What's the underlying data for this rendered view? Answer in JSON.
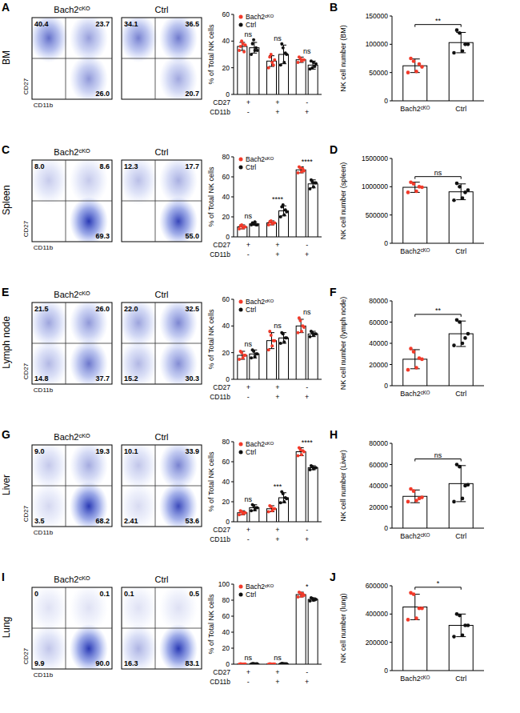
{
  "chart_data": [
    {
      "type": "flow",
      "panel": "A",
      "side_label": "BM",
      "x_label": "CD11b",
      "y_label": "CD27",
      "plots": [
        {
          "title": "Bach2ᶜᴷᴼ",
          "quadrants": {
            "ul": "40.4",
            "ur": "23.7",
            "lr": "26.0"
          }
        },
        {
          "title": "Ctrl",
          "quadrants": {
            "ul": "34.1",
            "ur": "36.5",
            "lr": "20.7"
          }
        }
      ]
    },
    {
      "type": "grouped_bar",
      "y_label": "% of Total NK cells",
      "category_rows": [
        "CD27",
        "CD11b"
      ],
      "categories": [
        [
          "+",
          "-"
        ],
        [
          "+",
          "+"
        ],
        [
          "-",
          "+"
        ]
      ],
      "ylim": [
        0,
        60
      ],
      "yticks": [
        0,
        20,
        40,
        60
      ],
      "legend": "top-left",
      "series": [
        {
          "name": "Bach2ᶜᴷᴼ",
          "color": "#f23a2a",
          "values": [
            36,
            25,
            26
          ],
          "errors": [
            3,
            4,
            2
          ],
          "points": [
            [
              33,
              36,
              40,
              38,
              32,
              37
            ],
            [
              20,
              28,
              30,
              24,
              22,
              26
            ],
            [
              24,
              28,
              27,
              25,
              26,
              26
            ]
          ]
        },
        {
          "name": "Ctrl",
          "color": "#111111",
          "values": [
            35,
            30,
            22
          ],
          "errors": [
            4,
            7,
            3
          ],
          "points": [
            [
              30,
              38,
              41,
              33,
              35,
              33
            ],
            [
              22,
              38,
              35,
              24,
              31,
              30
            ],
            [
              19,
              25,
              20,
              24,
              21,
              23
            ]
          ]
        }
      ],
      "significance": [
        "ns",
        "ns",
        "ns"
      ]
    },
    {
      "type": "bar",
      "panel": "B",
      "y_label": "NK cell number (BM)",
      "categories": [
        "Bach2ᶜᴷᴼ",
        "Ctrl"
      ],
      "values": [
        62000,
        103000
      ],
      "errors": [
        12000,
        18000
      ],
      "colors": [
        "#f23a2a",
        "#111111"
      ],
      "points": [
        [
          50000,
          75000,
          70000,
          52000,
          65000,
          60000
        ],
        [
          85000,
          125000,
          120000,
          88000,
          100000,
          100000
        ]
      ],
      "ylim": [
        0,
        150000
      ],
      "yticks": [
        0,
        50000,
        100000,
        150000
      ],
      "significance": [
        "**"
      ]
    },
    {
      "type": "flow",
      "panel": "C",
      "side_label": "Spleen",
      "x_label": "CD11b",
      "y_label": "CD27",
      "plots": [
        {
          "title": "Bach2ᶜᴷᴼ",
          "quadrants": {
            "ul": "8.0",
            "ur": "8.6",
            "lr": "69.3"
          }
        },
        {
          "title": "Ctrl",
          "quadrants": {
            "ul": "12.3",
            "ur": "17.7",
            "lr": "55.0"
          }
        }
      ]
    },
    {
      "type": "grouped_bar",
      "y_label": "% of Total NK cells",
      "category_rows": [
        "CD27",
        "CD11b"
      ],
      "categories": [
        [
          "+",
          "-"
        ],
        [
          "+",
          "+"
        ],
        [
          "-",
          "+"
        ]
      ],
      "ylim": [
        0,
        80
      ],
      "yticks": [
        0,
        20,
        40,
        60,
        80
      ],
      "legend": "top-left",
      "series": [
        {
          "name": "Bach2ᶜᴷᴼ",
          "color": "#f23a2a",
          "values": [
            10,
            14,
            67
          ],
          "errors": [
            2,
            2,
            3
          ],
          "points": [
            [
              8,
              11,
              12,
              9,
              10,
              10
            ],
            [
              12,
              15,
              16,
              13,
              14,
              14
            ],
            [
              64,
              70,
              69,
              65,
              68,
              66
            ]
          ]
        },
        {
          "name": "Ctrl",
          "color": "#111111",
          "values": [
            13,
            26,
            53
          ],
          "errors": [
            1.5,
            5,
            4
          ],
          "points": [
            [
              12,
              14,
              13,
              15,
              12,
              12
            ],
            [
              20,
              30,
              32,
              22,
              27,
              25
            ],
            [
              48,
              57,
              55,
              50,
              54,
              54
            ]
          ]
        }
      ],
      "significance": [
        "ns",
        "****",
        "****"
      ]
    },
    {
      "type": "bar",
      "panel": "D",
      "y_label": "NK cell number (spleen)",
      "categories": [
        "Bach2ᶜᴷᴼ",
        "Ctrl"
      ],
      "values": [
        990000,
        910000
      ],
      "errors": [
        90000,
        140000
      ],
      "colors": [
        "#f23a2a",
        "#111111"
      ],
      "points": [
        [
          900000,
          1080000,
          1050000,
          920000,
          1000000,
          990000
        ],
        [
          760000,
          1060000,
          1000000,
          800000,
          900000,
          940000
        ]
      ],
      "ylim": [
        0,
        1500000
      ],
      "yticks": [
        0,
        500000,
        1000000,
        1500000
      ],
      "significance": [
        "ns"
      ]
    },
    {
      "type": "flow",
      "panel": "E",
      "side_label": "Lymph node",
      "x_label": "CD11b",
      "y_label": "CD27",
      "plots": [
        {
          "title": "Bach2ᶜᴷᴼ",
          "quadrants": {
            "ul": "21.5",
            "ur": "26.0",
            "ll": "14.8",
            "lr": "37.7"
          }
        },
        {
          "title": "Ctrl",
          "quadrants": {
            "ul": "22.0",
            "ur": "32.5",
            "ll": "15.2",
            "lr": "30.3"
          }
        }
      ]
    },
    {
      "type": "grouped_bar",
      "y_label": "% of Total NK cells",
      "category_rows": [
        "CD27",
        "CD11b"
      ],
      "categories": [
        [
          "+",
          "-"
        ],
        [
          "+",
          "+"
        ],
        [
          "-",
          "+"
        ]
      ],
      "ylim": [
        0,
        60
      ],
      "yticks": [
        0,
        20,
        40,
        60
      ],
      "legend": "top-left",
      "series": [
        {
          "name": "Bach2ᶜᴷᴼ",
          "color": "#f23a2a",
          "values": [
            18,
            29,
            40
          ],
          "errors": [
            3,
            6,
            5
          ],
          "points": [
            [
              15,
              21,
              20,
              16,
              18,
              18
            ],
            [
              22,
              36,
              33,
              25,
              29,
              29
            ],
            [
              35,
              46,
              44,
              36,
              40,
              39
            ]
          ]
        },
        {
          "name": "Ctrl",
          "color": "#111111",
          "values": [
            19,
            31,
            34
          ],
          "errors": [
            3,
            4,
            2
          ],
          "points": [
            [
              16,
              22,
              21,
              17,
              19,
              19
            ],
            [
              27,
              35,
              34,
              28,
              31,
              31
            ],
            [
              32,
              36,
              35,
              33,
              34,
              34
            ]
          ]
        }
      ],
      "significance": [
        "ns",
        "ns",
        "ns"
      ]
    },
    {
      "type": "bar",
      "panel": "F",
      "y_label": "NK cell number (lymph node)",
      "categories": [
        "Bach2ᶜᴷᴼ",
        "Ctrl"
      ],
      "values": [
        25000,
        49000
      ],
      "errors": [
        9000,
        12000
      ],
      "colors": [
        "#f23a2a",
        "#111111"
      ],
      "points": [
        [
          15000,
          35000,
          32000,
          17000,
          26000,
          25000
        ],
        [
          38000,
          62000,
          60000,
          40000,
          45000,
          49000
        ]
      ],
      "ylim": [
        0,
        80000
      ],
      "yticks": [
        0,
        20000,
        40000,
        60000,
        80000
      ],
      "significance": [
        "**"
      ]
    },
    {
      "type": "flow",
      "panel": "G",
      "side_label": "Liver",
      "x_label": "CD11b",
      "y_label": "CD27",
      "plots": [
        {
          "title": "Bach2ᶜᴷᴼ",
          "quadrants": {
            "ul": "9.0",
            "ur": "19.3",
            "ll": "3.5",
            "lr": "68.2"
          }
        },
        {
          "title": "Ctrl",
          "quadrants": {
            "ul": "10.1",
            "ur": "33.9",
            "ll": "2.41",
            "lr": "53.6"
          }
        }
      ]
    },
    {
      "type": "grouped_bar",
      "y_label": "% of Total NK cells",
      "category_rows": [
        "CD27",
        "CD11b"
      ],
      "categories": [
        [
          "+",
          "-"
        ],
        [
          "+",
          "+"
        ],
        [
          "-",
          "+"
        ]
      ],
      "ylim": [
        0,
        80
      ],
      "yticks": [
        0,
        20,
        40,
        60,
        80
      ],
      "legend": "top-left",
      "series": [
        {
          "name": "Bach2ᶜᴷᴼ",
          "color": "#f23a2a",
          "values": [
            9,
            13,
            70
          ],
          "errors": [
            2,
            3,
            4
          ],
          "points": [
            [
              7,
              11,
              10,
              8,
              9,
              9
            ],
            [
              10,
              16,
              15,
              11,
              13,
              13
            ],
            [
              66,
              74,
              72,
              67,
              71,
              70
            ]
          ]
        },
        {
          "name": "Ctrl",
          "color": "#111111",
          "values": [
            14,
            24,
            54
          ],
          "errors": [
            3,
            5,
            2
          ],
          "points": [
            [
              11,
              17,
              16,
              12,
              14,
              14
            ],
            [
              19,
              30,
              28,
              20,
              24,
              23
            ],
            [
              52,
              56,
              55,
              53,
              54,
              54
            ]
          ]
        }
      ],
      "significance": [
        "ns",
        "***",
        "****"
      ]
    },
    {
      "type": "bar",
      "panel": "H",
      "y_label": "NK cell number (Liver)",
      "categories": [
        "Bach2ᶜᴷᴼ",
        "Ctrl"
      ],
      "values": [
        30000,
        42000
      ],
      "errors": [
        6000,
        17000
      ],
      "colors": [
        "#f23a2a",
        "#111111"
      ],
      "points": [
        [
          25000,
          37000,
          35000,
          26000,
          28000,
          29000
        ],
        [
          25000,
          60000,
          58000,
          28000,
          40000,
          41000
        ]
      ],
      "ylim": [
        0,
        80000
      ],
      "yticks": [
        0,
        20000,
        40000,
        60000,
        80000
      ],
      "significance": [
        "ns"
      ]
    },
    {
      "type": "flow",
      "panel": "I",
      "side_label": "Lung",
      "x_label": "CD11b",
      "y_label": "CD27",
      "plots": [
        {
          "title": "Bach2ᶜᴷᴼ",
          "quadrants": {
            "ul": "0",
            "ur": "0.1",
            "ll": "9.9",
            "lr": "90.0"
          }
        },
        {
          "title": "Ctrl",
          "quadrants": {
            "ul": "0.1",
            "ur": "0.5",
            "ll": "16.3",
            "lr": "83.1"
          }
        }
      ]
    },
    {
      "type": "grouped_bar",
      "y_label": "% of Total NK cells",
      "category_rows": [
        "CD27",
        "CD11b"
      ],
      "categories": [
        [
          "+",
          "-"
        ],
        [
          "+",
          "+"
        ],
        [
          "-",
          "+"
        ]
      ],
      "ylim": [
        0,
        100
      ],
      "yticks": [
        0,
        20,
        40,
        60,
        80,
        100
      ],
      "legend": "top-left",
      "series": [
        {
          "name": "Bach2ᶜᴷᴼ",
          "color": "#f23a2a",
          "values": [
            0.2,
            0.2,
            87
          ],
          "errors": [
            0.2,
            0.2,
            3
          ],
          "points": [
            [
              0,
              0.4,
              0.3,
              0.1,
              0.2,
              0.2
            ],
            [
              0,
              0.4,
              0.3,
              0.1,
              0.2,
              0.2
            ],
            [
              84,
              90,
              89,
              85,
              88,
              86
            ]
          ]
        },
        {
          "name": "Ctrl",
          "color": "#111111",
          "values": [
            0.5,
            0.6,
            81
          ],
          "errors": [
            0.3,
            0.3,
            2
          ],
          "points": [
            [
              0.2,
              0.8,
              0.7,
              0.3,
              0.5,
              0.5
            ],
            [
              0.3,
              0.9,
              0.8,
              0.4,
              0.6,
              0.6
            ],
            [
              79,
              83,
              82,
              80,
              81,
              81
            ]
          ]
        }
      ],
      "significance": [
        "ns",
        "ns",
        "*"
      ]
    },
    {
      "type": "bar",
      "panel": "J",
      "y_label": "NK cell number (lung)",
      "categories": [
        "Bach2ᶜᴷᴼ",
        "Ctrl"
      ],
      "values": [
        450000,
        320000
      ],
      "errors": [
        90000,
        80000
      ],
      "colors": [
        "#f23a2a",
        "#111111"
      ],
      "points": [
        [
          360000,
          550000,
          540000,
          370000,
          440000,
          440000
        ],
        [
          240000,
          400000,
          390000,
          250000,
          320000,
          320000
        ]
      ],
      "ylim": [
        0,
        600000
      ],
      "yticks": [
        0,
        200000,
        400000,
        600000
      ],
      "significance": [
        "*"
      ]
    }
  ]
}
